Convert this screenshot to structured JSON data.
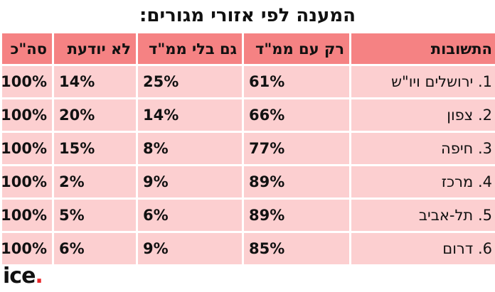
{
  "title": "המענה לפי אזורי מגורים:",
  "table": {
    "headers": [
      "התשובות",
      "רק עם ממ\"ד",
      "גם בלי ממ\"ד",
      "לא יודעת",
      "סה\"כ"
    ],
    "rows": [
      {
        "num": "1.",
        "answer": "ירושלים ויו\"ש",
        "only_mamad": "61%",
        "also_without": "25%",
        "dont_know": "14%",
        "total": "100%"
      },
      {
        "num": "2.",
        "answer": "צפון",
        "only_mamad": "66%",
        "also_without": "14%",
        "dont_know": "20%",
        "total": "100%"
      },
      {
        "num": "3.",
        "answer": "חיפה",
        "only_mamad": "77%",
        "also_without": "8%",
        "dont_know": "15%",
        "total": "100%"
      },
      {
        "num": "4.",
        "answer": "מרכז",
        "only_mamad": "89%",
        "also_without": "9%",
        "dont_know": "2%",
        "total": "100%"
      },
      {
        "num": "5.",
        "answer": "תל-אביב",
        "only_mamad": "89%",
        "also_without": "6%",
        "dont_know": "5%",
        "total": "100%"
      },
      {
        "num": "6.",
        "answer": "דרום",
        "only_mamad": "85%",
        "also_without": "9%",
        "dont_know": "6%",
        "total": "100%"
      }
    ]
  },
  "logo": {
    "text": "ice",
    "dot": ".",
    "dot_color": "#e8262a"
  },
  "colors": {
    "header_bg": "#f58283",
    "cell_bg": "#fccfd0"
  }
}
